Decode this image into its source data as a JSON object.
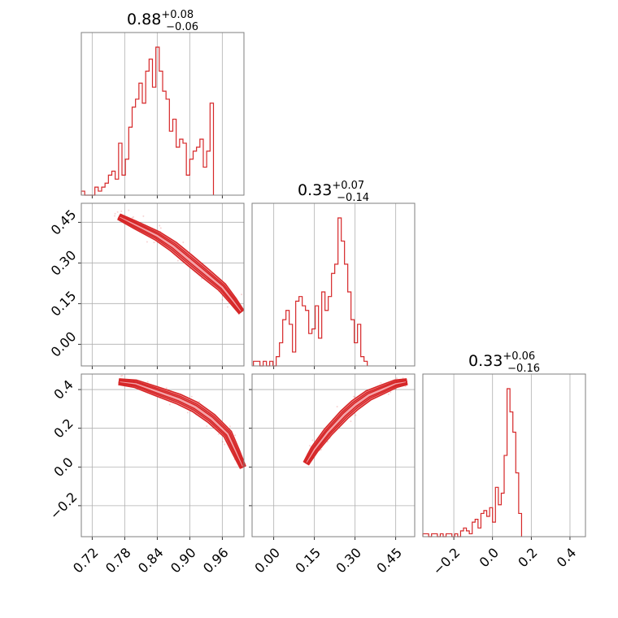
{
  "chart_data": {
    "type": "corner",
    "color": "#d62728",
    "fill_color": "#f4a3a8",
    "grid": true,
    "parameters": [
      {
        "median": "0.88",
        "plus": "+0.08",
        "minus": "−0.06",
        "range": [
          0.7,
          1.0
        ]
      },
      {
        "median": "0.33",
        "plus": "+0.07",
        "minus": "−0.14",
        "range": [
          -0.08,
          0.52
        ]
      },
      {
        "median": "0.33",
        "plus": "+0.06",
        "minus": "−0.16",
        "range": [
          -0.36,
          0.48
        ]
      }
    ],
    "ticks": {
      "p0": [
        {
          "v": 0.72,
          "label": "0.72"
        },
        {
          "v": 0.78,
          "label": "0.78"
        },
        {
          "v": 0.84,
          "label": "0.84"
        },
        {
          "v": 0.9,
          "label": "0.90"
        },
        {
          "v": 0.96,
          "label": "0.96"
        }
      ],
      "p1": [
        {
          "v": 0.0,
          "label": "0.00"
        },
        {
          "v": 0.15,
          "label": "0.15"
        },
        {
          "v": 0.3,
          "label": "0.30"
        },
        {
          "v": 0.45,
          "label": "0.45"
        }
      ],
      "p2": [
        {
          "v": -0.2,
          "label": "−0.2"
        },
        {
          "v": 0.0,
          "label": "0.0"
        },
        {
          "v": 0.2,
          "label": "0.2"
        },
        {
          "v": 0.4,
          "label": "0.4"
        }
      ]
    },
    "histograms": [
      {
        "param": 0,
        "bin_start": 0.7,
        "bin_width": 0.00625,
        "counts": [
          1,
          0,
          0,
          0,
          2,
          1,
          2,
          3,
          5,
          6,
          4,
          13,
          5,
          9,
          17,
          22,
          24,
          28,
          23,
          31,
          34,
          27,
          37,
          31,
          26,
          24,
          16,
          19,
          12,
          14,
          13,
          5,
          9,
          11,
          12,
          14,
          7,
          11,
          23
        ]
      },
      {
        "param": 1,
        "bin_start": -0.075,
        "bin_width": 0.012,
        "counts": [
          1,
          1,
          0,
          1,
          0,
          1,
          0,
          2,
          5,
          10,
          12,
          9,
          3,
          14,
          15,
          13,
          12,
          7,
          8,
          13,
          6,
          16,
          12,
          15,
          20,
          22,
          32,
          27,
          22,
          16,
          10,
          5,
          9,
          2,
          1
        ]
      },
      {
        "param": 2,
        "bin_start": -0.36,
        "bin_width": 0.015,
        "counts": [
          1,
          1,
          0,
          1,
          1,
          0,
          1,
          0,
          1,
          1,
          0,
          1,
          0,
          2,
          3,
          2,
          1,
          5,
          6,
          3,
          8,
          9,
          7,
          10,
          5,
          17,
          11,
          15,
          28,
          51,
          43,
          36,
          22,
          8
        ]
      }
    ],
    "contour_ridges": [
      {
        "x_param": 0,
        "y_param": 1,
        "x": [
          0.77,
          0.8,
          0.84,
          0.87,
          0.9,
          0.93,
          0.96,
          0.98,
          0.995
        ],
        "y": [
          0.47,
          0.44,
          0.4,
          0.36,
          0.31,
          0.26,
          0.21,
          0.16,
          0.12
        ]
      },
      {
        "x_param": 0,
        "y_param": 2,
        "x": [
          0.77,
          0.8,
          0.84,
          0.88,
          0.91,
          0.94,
          0.97,
          0.985,
          0.998
        ],
        "y": [
          0.44,
          0.43,
          0.39,
          0.35,
          0.31,
          0.25,
          0.17,
          0.08,
          0.0
        ]
      },
      {
        "x_param": 1,
        "y_param": 2,
        "x": [
          0.12,
          0.15,
          0.2,
          0.26,
          0.3,
          0.35,
          0.4,
          0.45,
          0.49
        ],
        "y": [
          0.02,
          0.09,
          0.18,
          0.27,
          0.32,
          0.37,
          0.4,
          0.43,
          0.44
        ]
      }
    ]
  }
}
